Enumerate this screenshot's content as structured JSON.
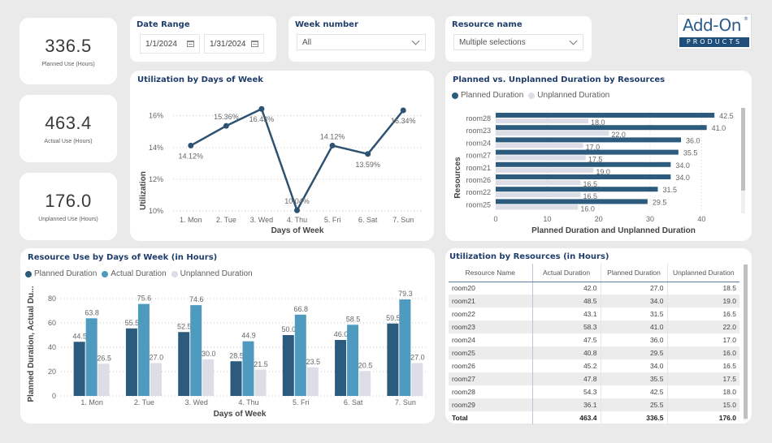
{
  "kpis": [
    {
      "value": "336.5",
      "label": "Planned Use (Hours)"
    },
    {
      "value": "463.4",
      "label": "Actual Use (Hours)"
    },
    {
      "value": "176.0",
      "label": "Unplanned Use (Hours)"
    }
  ],
  "slicers": {
    "date_range": {
      "title": "Date Range",
      "start": "1/1/2024",
      "end": "1/31/2024"
    },
    "week_number": {
      "title": "Week number",
      "value": "All"
    },
    "resource_name": {
      "title": "Resource name",
      "value": "Multiple selections"
    }
  },
  "logo": {
    "top": "Add-On",
    "reg": "®",
    "bottom": "PRODUCTS"
  },
  "colors": {
    "planned": "#2d5b7e",
    "actual": "#4f9bbf",
    "unplanned": "#dcdde6",
    "title": "#1f3d6b",
    "line": "#2d5272"
  },
  "chart_data": [
    {
      "id": "utilization_by_day",
      "type": "line",
      "title": "Utilization by Days of Week",
      "xlabel": "Days of Week",
      "ylabel": "Utilization",
      "categories": [
        "1. Mon",
        "2. Tue",
        "3. Wed",
        "4. Thu",
        "5. Fri",
        "6. Sat",
        "7. Sun"
      ],
      "values": [
        14.12,
        15.36,
        16.43,
        10.04,
        14.12,
        13.59,
        16.34
      ],
      "labels": [
        "14.12%",
        "15.36%",
        "16.43%",
        "10.04%",
        "14.12%",
        "13.59%",
        "16.34%"
      ],
      "yticks": [
        "10%",
        "12%",
        "14%",
        "16%"
      ],
      "ytick_values": [
        10,
        12,
        14,
        16
      ],
      "ylim": [
        10,
        16.8
      ],
      "grid": true
    },
    {
      "id": "planned_vs_unplanned",
      "type": "bar",
      "orientation": "horizontal",
      "title": "Planned vs. Unplanned Duration by Resources",
      "xlabel": "Planned Duration and Unplanned Duration",
      "ylabel": "Resources",
      "categories": [
        "room28",
        "room23",
        "room24",
        "room27",
        "room21",
        "room26",
        "room22",
        "room25"
      ],
      "series": [
        {
          "name": "Planned Duration",
          "values": [
            42.5,
            41.0,
            36.0,
            35.5,
            34.0,
            34.0,
            31.5,
            29.5
          ]
        },
        {
          "name": "Unplanned Duration",
          "values": [
            18.0,
            22.0,
            17.0,
            17.5,
            19.0,
            16.5,
            16.5,
            16.0
          ]
        }
      ],
      "xticks": [
        "0",
        "10",
        "20",
        "30",
        "40"
      ],
      "xtick_values": [
        0,
        10,
        20,
        30,
        40
      ],
      "xlim": [
        0,
        45
      ],
      "legend": "top-left",
      "grid": true
    },
    {
      "id": "resource_use_by_day",
      "type": "bar",
      "title": "Resource Use by Days of Week (in Hours)",
      "xlabel": "Days of Week",
      "ylabel": "Planned Duration, Actual Du...",
      "categories": [
        "1. Mon",
        "2. Tue",
        "3. Wed",
        "4. Thu",
        "5. Fri",
        "6. Sat",
        "7. Sun"
      ],
      "series": [
        {
          "name": "Planned Duration",
          "values": [
            44.5,
            55.5,
            52.5,
            28.5,
            50.0,
            46.0,
            59.5
          ]
        },
        {
          "name": "Actual Duration",
          "values": [
            63.8,
            75.6,
            74.6,
            44.9,
            66.8,
            58.5,
            79.3
          ]
        },
        {
          "name": "Unplanned Duration",
          "values": [
            26.5,
            27.0,
            30.0,
            21.5,
            23.5,
            20.5,
            27.0
          ]
        }
      ],
      "yticks": [
        "0",
        "20",
        "40",
        "60",
        "80"
      ],
      "ytick_values": [
        0,
        20,
        40,
        60,
        80
      ],
      "ylim": [
        0,
        88
      ],
      "legend": "top-left",
      "grid": true
    }
  ],
  "table": {
    "title": "Utilization by Resources (in Hours)",
    "columns": [
      "Resource Name",
      "Actual Duration",
      "Planned Duration",
      "Unplanned Duration"
    ],
    "rows": [
      [
        "room20",
        "42.0",
        "27.0",
        "18.5"
      ],
      [
        "room21",
        "48.5",
        "34.0",
        "19.0"
      ],
      [
        "room22",
        "43.1",
        "31.5",
        "16.5"
      ],
      [
        "room23",
        "58.3",
        "41.0",
        "22.0"
      ],
      [
        "room24",
        "47.5",
        "36.0",
        "17.0"
      ],
      [
        "room25",
        "40.8",
        "29.5",
        "16.0"
      ],
      [
        "room26",
        "45.2",
        "34.0",
        "16.5"
      ],
      [
        "room27",
        "47.8",
        "35.5",
        "17.5"
      ],
      [
        "room28",
        "54.3",
        "42.5",
        "18.0"
      ],
      [
        "room29",
        "36.1",
        "25.5",
        "15.0"
      ]
    ],
    "total": [
      "Total",
      "463.4",
      "336.5",
      "176.0"
    ]
  }
}
